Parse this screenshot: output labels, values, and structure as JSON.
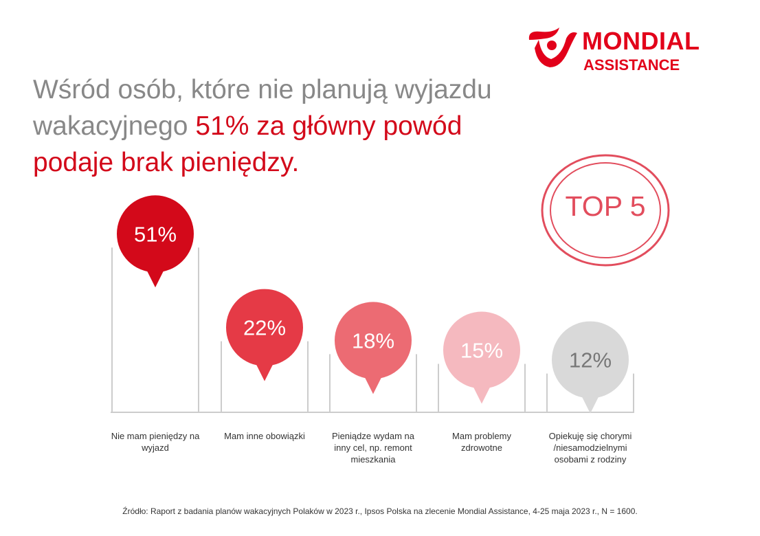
{
  "logo": {
    "line1": "MONDIAL",
    "line2": "ASSISTANCE"
  },
  "headline": {
    "part1": "Wśród osób, które nie planują wyjazdu wakacyjnego ",
    "part2": "51% za główny powód podaje brak pieniędzy."
  },
  "badge": {
    "label": "TOP 5"
  },
  "chart_data": {
    "type": "bar",
    "categories": [
      "Nie mam pieniędzy na wyjazd",
      "Mam inne obowiązki",
      "Pieniądze wydam na inny cel, np. remont mieszkania",
      "Mam problemy zdrowotne",
      "Opiekuję się chorymi /niesamodzielnymi osobami z rodziny"
    ],
    "values": [
      51,
      22,
      18,
      15,
      12
    ],
    "value_labels": [
      "51%",
      "22%",
      "18%",
      "15%",
      "12%"
    ],
    "colors": [
      "#d3091a",
      "#e53a46",
      "#ec6b73",
      "#f5b9bf",
      "#d9d9d9"
    ],
    "label_colors": [
      "#ffffff",
      "#ffffff",
      "#ffffff",
      "#ffffff",
      "#777777"
    ]
  },
  "source": "Źródło: Raport z badania planów wakacyjnych Polaków w 2023 r., Ipsos Polska na zlecenie Mondial Assistance, 4-25 maja 2023 r., N = 1600."
}
